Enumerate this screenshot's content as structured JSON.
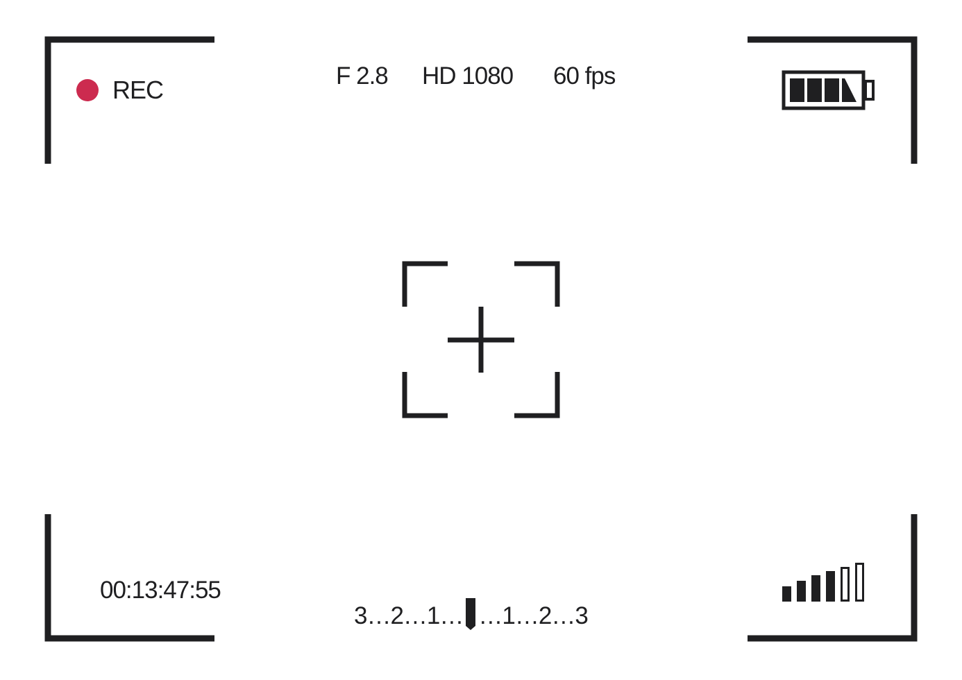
{
  "viewfinder": {
    "recording": {
      "label": "REC",
      "indicator_icon": "record-dot-icon",
      "indicator_color": "#cc2b4f"
    },
    "settings": {
      "aperture": "F 2.8",
      "resolution": "HD 1080",
      "frame_rate": "60 fps"
    },
    "timecode": "00:13:47:55",
    "exposure_scale": {
      "left_label": "3…2…1…",
      "right_label": "…1…2…3",
      "marker_icon": "exposure-marker-icon",
      "value": 0
    },
    "battery": {
      "icon": "battery-icon",
      "level_segments": 3.5,
      "total_segments": 4
    },
    "signal": {
      "icon": "signal-strength-icon",
      "filled_bars": 4,
      "total_bars": 6
    },
    "focus": {
      "icon": "focus-crosshair-icon"
    },
    "colors": {
      "foreground": "#1f1f21",
      "background": "#ffffff",
      "record": "#cc2b4f"
    }
  }
}
